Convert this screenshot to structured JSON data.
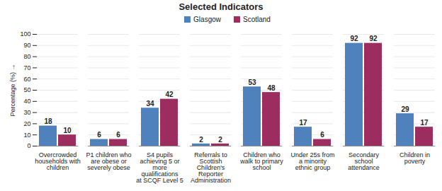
{
  "chart_data": {
    "type": "bar",
    "title": "Selected Indicators",
    "y_label": "Percentage (%)",
    "categories": [
      "Overcrowded households with children",
      "P1 children who are obese or severely obese",
      "S4 pupils achieving 5 or more qualifications at SCQF Level 5",
      "Referrals to Scottish Children's Reporter Administration",
      "Children who walk to primary school",
      "Under 25s from a minority ethnic group",
      "Secondary school attendance",
      "Children in poverty"
    ],
    "series": [
      {
        "name": "Glasgow",
        "color": "#4f81bd",
        "values": [
          18,
          6,
          34,
          2,
          53,
          17,
          92,
          29
        ]
      },
      {
        "name": "Scotland",
        "color": "#9b2d5f",
        "values": [
          10,
          6,
          42,
          2,
          48,
          6,
          92,
          17
        ]
      }
    ],
    "ylim": [
      0,
      100
    ],
    "yticks": [
      0,
      10,
      20,
      30,
      40,
      50,
      60,
      70,
      80,
      90,
      100
    ],
    "grid": true,
    "legend": "top",
    "data_labels": true
  }
}
